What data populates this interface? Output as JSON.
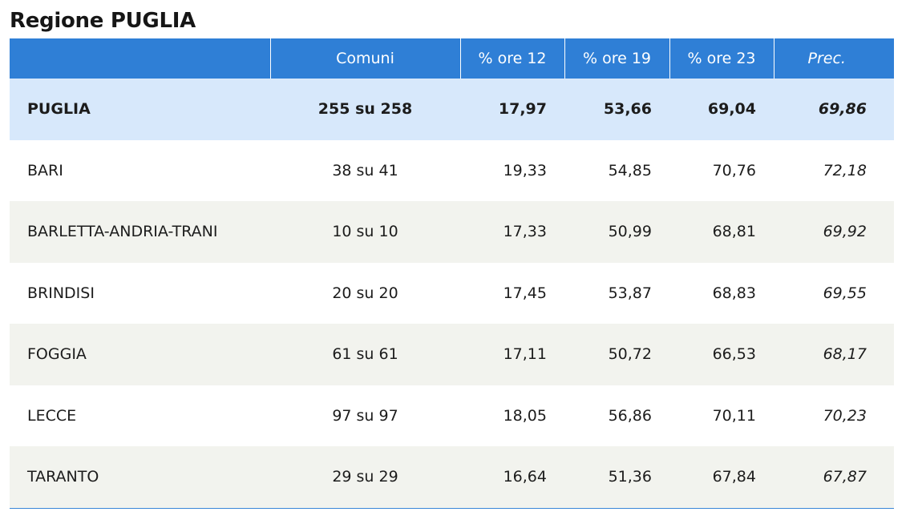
{
  "title": "Regione PUGLIA",
  "headers": {
    "name": "",
    "comuni": "Comuni",
    "ore12": "% ore 12",
    "ore19": "% ore 19",
    "ore23": "% ore 23",
    "prec": "Prec."
  },
  "rows": [
    {
      "name": "PUGLIA",
      "comuni": "255 su 258",
      "ore12": "17,97",
      "ore19": "53,66",
      "ore23": "69,04",
      "prec": "69,86"
    },
    {
      "name": "BARI",
      "comuni": "38 su 41",
      "ore12": "19,33",
      "ore19": "54,85",
      "ore23": "70,76",
      "prec": "72,18"
    },
    {
      "name": "BARLETTA-ANDRIA-TRANI",
      "comuni": "10 su 10",
      "ore12": "17,33",
      "ore19": "50,99",
      "ore23": "68,81",
      "prec": "69,92"
    },
    {
      "name": "BRINDISI",
      "comuni": "20 su 20",
      "ore12": "17,45",
      "ore19": "53,87",
      "ore23": "68,83",
      "prec": "69,55"
    },
    {
      "name": "FOGGIA",
      "comuni": "61 su 61",
      "ore12": "17,11",
      "ore19": "50,72",
      "ore23": "66,53",
      "prec": "68,17"
    },
    {
      "name": "LECCE",
      "comuni": "97 su 97",
      "ore12": "18,05",
      "ore19": "56,86",
      "ore23": "70,11",
      "prec": "70,23"
    },
    {
      "name": "TARANTO",
      "comuni": "29 su 29",
      "ore12": "16,64",
      "ore19": "51,36",
      "ore23": "67,84",
      "prec": "67,87"
    }
  ],
  "colors": {
    "header_bg": "#2f7fd6",
    "total_row_bg": "#d7e8fb",
    "stripe_bg": "#f2f3ee"
  }
}
